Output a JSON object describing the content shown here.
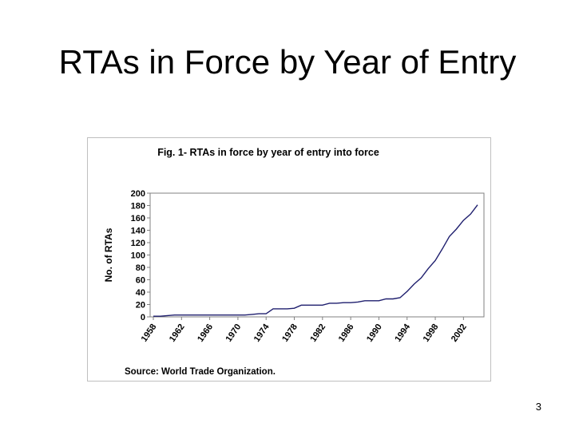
{
  "slide": {
    "title": "RTAs in Force by Year of Entry",
    "page_number": "3"
  },
  "chart_data": {
    "type": "line",
    "title": "Fig. 1- RTAs in force by year of entry into force",
    "xlabel": "",
    "ylabel": "No. of RTAs",
    "source": "Source: World Trade Organization.",
    "ylim": [
      0,
      200
    ],
    "yticks": [
      0,
      20,
      40,
      60,
      80,
      100,
      120,
      140,
      160,
      180,
      200
    ],
    "xlim": [
      1958,
      2004
    ],
    "xticks": [
      1958,
      1962,
      1966,
      1970,
      1974,
      1978,
      1982,
      1986,
      1990,
      1994,
      1998,
      2002
    ],
    "grid": false,
    "line_color": "#1f1f6e",
    "series": [
      {
        "x": [
          1958,
          1959,
          1960,
          1961,
          1962,
          1963,
          1964,
          1965,
          1966,
          1967,
          1968,
          1969,
          1970,
          1971,
          1972,
          1973,
          1974,
          1975,
          1976,
          1977,
          1978,
          1979,
          1980,
          1981,
          1982,
          1983,
          1984,
          1985,
          1986,
          1987,
          1988,
          1989,
          1990,
          1991,
          1992,
          1993,
          1994,
          1995,
          1996,
          1997,
          1998,
          1999,
          2000,
          2001,
          2002,
          2003,
          2004
        ],
        "y": [
          1,
          1,
          2,
          3,
          3,
          3,
          3,
          3,
          3,
          3,
          3,
          3,
          3,
          3,
          4,
          5,
          5,
          13,
          13,
          13,
          14,
          19,
          19,
          19,
          19,
          22,
          22,
          23,
          23,
          24,
          26,
          26,
          26,
          29,
          29,
          31,
          41,
          53,
          63,
          78,
          91,
          110,
          130,
          142,
          156,
          166,
          181
        ]
      }
    ]
  }
}
